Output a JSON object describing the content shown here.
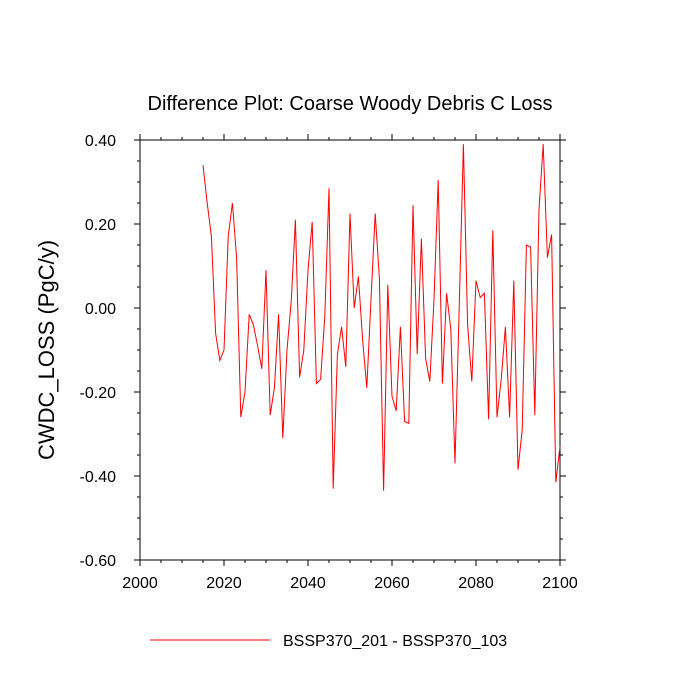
{
  "chart_data": {
    "type": "line",
    "title": "Difference Plot: Coarse Woody Debris C Loss",
    "xlabel": "",
    "ylabel": "CWDC_LOSS  (PgC/y)",
    "xlim": [
      2000,
      2100
    ],
    "ylim": [
      -0.6,
      0.4
    ],
    "x_ticks": [
      2000,
      2020,
      2040,
      2060,
      2080,
      2100
    ],
    "x_tick_labels": [
      "2000",
      "2020",
      "2040",
      "2060",
      "2080",
      "2100"
    ],
    "y_ticks": [
      0.4,
      0.2,
      0.0,
      -0.2,
      -0.4,
      -0.6
    ],
    "y_tick_labels": [
      "0.40",
      "0.20",
      "0.00",
      "-0.20",
      "-0.40",
      "-0.60"
    ],
    "x_minor_step": 5,
    "y_minor_step": 0.05,
    "grid": false,
    "legend_position": "bottom-center",
    "series": [
      {
        "name": "BSSP370_201 - BSSP370_103",
        "color": "#ff0000",
        "x": [
          2015,
          2016,
          2017,
          2018,
          2019,
          2020,
          2021,
          2022,
          2023,
          2024,
          2025,
          2026,
          2027,
          2028,
          2029,
          2030,
          2031,
          2032,
          2033,
          2034,
          2035,
          2036,
          2037,
          2038,
          2039,
          2040,
          2041,
          2042,
          2043,
          2044,
          2045,
          2046,
          2047,
          2048,
          2049,
          2050,
          2051,
          2052,
          2053,
          2054,
          2055,
          2056,
          2057,
          2058,
          2059,
          2060,
          2061,
          2062,
          2063,
          2064,
          2065,
          2066,
          2067,
          2068,
          2069,
          2070,
          2071,
          2072,
          2073,
          2074,
          2075,
          2076,
          2077,
          2078,
          2079,
          2080,
          2081,
          2082,
          2083,
          2084,
          2085,
          2086,
          2087,
          2088,
          2089,
          2090,
          2091,
          2092,
          2093,
          2094,
          2095,
          2096,
          2097,
          2098,
          2099,
          2100
        ],
        "values": [
          0.34,
          0.25,
          0.17,
          -0.06,
          -0.125,
          -0.1,
          0.17,
          0.25,
          0.12,
          -0.26,
          -0.2,
          -0.015,
          -0.04,
          -0.09,
          -0.145,
          0.09,
          -0.255,
          -0.19,
          -0.015,
          -0.31,
          -0.1,
          0.015,
          0.21,
          -0.165,
          -0.1,
          0.09,
          0.205,
          -0.18,
          -0.17,
          -0.02,
          0.285,
          -0.43,
          -0.11,
          -0.045,
          -0.14,
          0.225,
          0.0,
          0.075,
          -0.075,
          -0.19,
          0.02,
          0.225,
          0.07,
          -0.435,
          0.055,
          -0.21,
          -0.245,
          -0.045,
          -0.27,
          -0.275,
          0.245,
          -0.11,
          0.165,
          -0.12,
          -0.175,
          0.02,
          0.305,
          -0.18,
          0.035,
          -0.05,
          -0.37,
          0.0,
          0.39,
          -0.04,
          -0.175,
          0.065,
          0.025,
          0.035,
          -0.265,
          0.185,
          -0.26,
          -0.17,
          -0.045,
          -0.26,
          0.065,
          -0.385,
          -0.29,
          0.15,
          0.145,
          -0.255,
          0.235,
          0.39,
          0.12,
          0.175,
          -0.415,
          -0.33
        ]
      }
    ]
  }
}
